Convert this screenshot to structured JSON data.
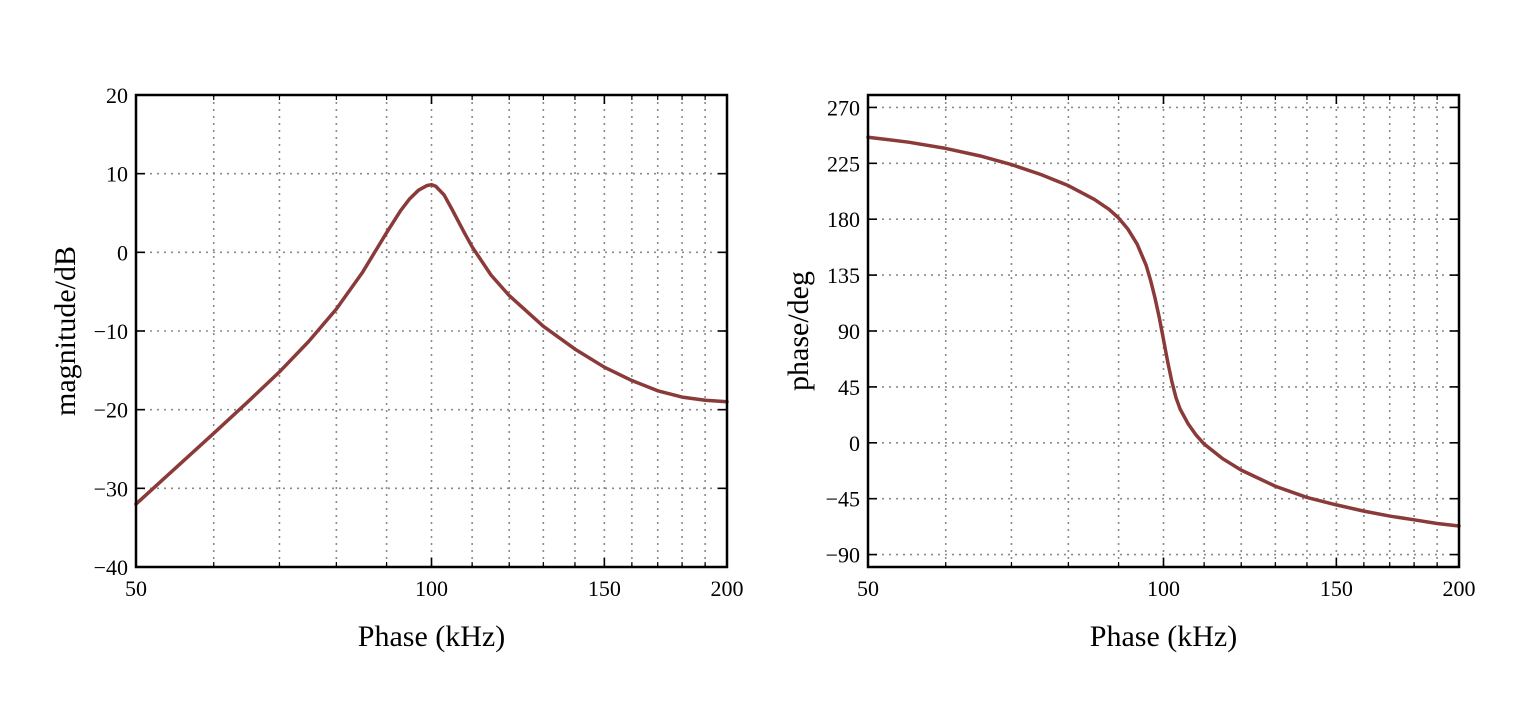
{
  "chart_data": [
    {
      "type": "line",
      "title": "",
      "xlabel": "Phase (kHz)",
      "ylabel": "magnitude/dB",
      "x_scale": "log",
      "xlim": [
        50,
        200
      ],
      "ylim": [
        -40,
        20
      ],
      "x_ticks": [
        50,
        100,
        150,
        200
      ],
      "x_tick_labels": [
        "50",
        "100",
        "150",
        "200"
      ],
      "y_ticks": [
        -40,
        -30,
        -20,
        -10,
        0,
        10,
        20
      ],
      "y_tick_labels": [
        "−40",
        "−30",
        "−20",
        "−10",
        "0",
        "10",
        "20"
      ],
      "grid": true,
      "series": [
        {
          "name": "magnitude",
          "color": "#8b3a3a",
          "x": [
            50,
            55,
            60,
            65,
            70,
            75,
            80,
            85,
            90,
            93,
            95,
            97,
            99,
            100,
            101,
            103,
            105,
            108,
            110,
            115,
            120,
            130,
            140,
            150,
            160,
            170,
            180,
            190,
            200
          ],
          "y": [
            -32.0,
            -27.3,
            -23.0,
            -19.0,
            -15.2,
            -11.3,
            -7.2,
            -2.6,
            2.5,
            5.3,
            6.8,
            7.9,
            8.5,
            8.6,
            8.4,
            7.3,
            5.4,
            2.5,
            0.7,
            -2.9,
            -5.5,
            -9.4,
            -12.3,
            -14.6,
            -16.3,
            -17.6,
            -18.4,
            -18.8,
            -19.0
          ]
        }
      ]
    },
    {
      "type": "line",
      "title": "",
      "xlabel": "Phase (kHz)",
      "ylabel": "phase/deg",
      "x_scale": "log",
      "xlim": [
        50,
        200
      ],
      "ylim": [
        -100,
        280
      ],
      "x_ticks": [
        50,
        100,
        150,
        200
      ],
      "x_tick_labels": [
        "50",
        "100",
        "150",
        "200"
      ],
      "y_ticks": [
        -90,
        -45,
        0,
        45,
        90,
        135,
        180,
        225,
        270
      ],
      "y_tick_labels": [
        "−90",
        "−45",
        "0",
        "45",
        "90",
        "135",
        "180",
        "225",
        "270"
      ],
      "grid": true,
      "series": [
        {
          "name": "phase",
          "color": "#8b3a3a",
          "x": [
            50,
            55,
            60,
            65,
            70,
            75,
            80,
            85,
            88,
            90,
            92,
            94,
            96,
            97,
            98,
            99,
            100,
            101,
            102,
            103,
            104,
            106,
            108,
            110,
            115,
            120,
            130,
            140,
            150,
            160,
            170,
            180,
            190,
            200
          ],
          "y": [
            246,
            242,
            237,
            231,
            224,
            216,
            207,
            196,
            188,
            181,
            172,
            160,
            143,
            131,
            117,
            101,
            83,
            65,
            49,
            36,
            27,
            15,
            6,
            -1,
            -13,
            -22,
            -35,
            -44,
            -50,
            -55,
            -59,
            -62,
            -65,
            -67
          ]
        }
      ]
    }
  ]
}
